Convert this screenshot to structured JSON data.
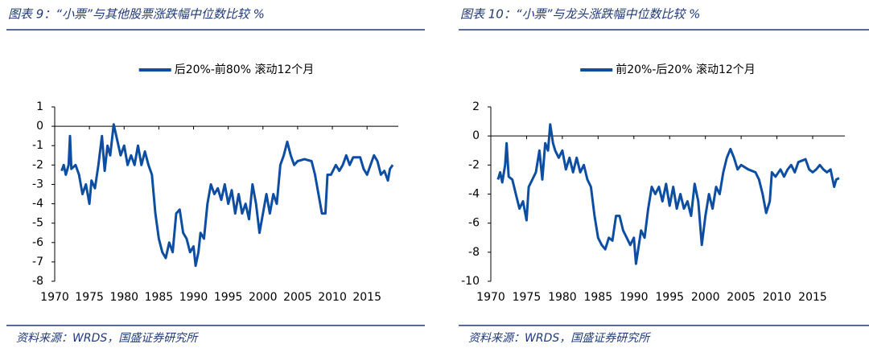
{
  "chart_data": [
    {
      "type": "line",
      "title": "图表 9：“小票”与其他股票涨跌幅中位数比较 %",
      "source": "资料来源：WRDS，国盛证券研究所",
      "xlim": [
        1970,
        2019.5
      ],
      "xticks": [
        1970,
        1975,
        1980,
        1985,
        1990,
        1995,
        2000,
        2005,
        2010,
        2015
      ],
      "ylim": [
        -8,
        1
      ],
      "yticks": [
        1,
        0,
        -1,
        -2,
        -3,
        -4,
        -5,
        -6,
        -7,
        -8
      ],
      "x": [
        1971,
        1971.3,
        1971.6,
        1972,
        1972.2,
        1972.4,
        1973,
        1973.5,
        1974,
        1974.5,
        1975,
        1975.3,
        1975.8,
        1976.3,
        1976.8,
        1977.2,
        1977.6,
        1978,
        1978.5,
        1979,
        1979.5,
        1980,
        1980.5,
        1981,
        1981.5,
        1982,
        1982.5,
        1983,
        1983.5,
        1984,
        1984.5,
        1985,
        1985.5,
        1986,
        1986.5,
        1987,
        1987.5,
        1988,
        1988.5,
        1989,
        1989.5,
        1990,
        1990.3,
        1990.7,
        1991,
        1991.5,
        1992,
        1992.5,
        1993,
        1993.5,
        1994,
        1994.5,
        1995,
        1995.5,
        1996,
        1996.5,
        1997,
        1997.5,
        1998,
        1998.5,
        1999,
        1999.5,
        2000,
        2000.5,
        2001,
        2001.5,
        2002,
        2002.5,
        2003,
        2003.5,
        2004,
        2004.5,
        2005,
        2006,
        2007,
        2007.5,
        2008,
        2008.5,
        2009,
        2009.3,
        2009.8,
        2010.5,
        2011,
        2011.5,
        2012,
        2012.5,
        2013,
        2014,
        2014.5,
        2015,
        2015.5,
        2016,
        2016.5,
        2017,
        2017.5,
        2018,
        2018.3,
        2018.7
      ],
      "series": [
        {
          "name": "后20%-前80% 滚动12个月",
          "color": "#0d4ea3",
          "values": [
            -2.3,
            -2.0,
            -2.5,
            -2.0,
            -0.5,
            -2.2,
            -2.0,
            -2.5,
            -3.5,
            -3.0,
            -4.0,
            -2.8,
            -3.2,
            -2.0,
            -0.5,
            -2.3,
            -1.0,
            -1.5,
            0.1,
            -0.7,
            -1.5,
            -1.0,
            -2.0,
            -1.5,
            -2.0,
            -1.0,
            -2.0,
            -1.3,
            -2.0,
            -2.5,
            -4.5,
            -5.8,
            -6.5,
            -6.8,
            -6.0,
            -6.5,
            -4.5,
            -4.3,
            -5.5,
            -5.8,
            -6.5,
            -6.2,
            -7.2,
            -6.5,
            -5.5,
            -5.8,
            -4.0,
            -3.0,
            -3.5,
            -3.2,
            -3.8,
            -3.0,
            -4.0,
            -3.3,
            -4.5,
            -3.5,
            -4.5,
            -4.0,
            -4.8,
            -3.0,
            -4.0,
            -5.5,
            -4.5,
            -3.5,
            -4.5,
            -3.5,
            -4.0,
            -2.0,
            -1.5,
            -0.8,
            -1.5,
            -2.0,
            -1.8,
            -1.7,
            -1.8,
            -2.5,
            -3.5,
            -4.5,
            -4.5,
            -2.5,
            -2.5,
            -2.0,
            -2.3,
            -2.0,
            -1.5,
            -2.0,
            -1.6,
            -1.6,
            -2.2,
            -2.5,
            -2.0,
            -1.5,
            -1.8,
            -2.5,
            -2.3,
            -2.8,
            -2.2,
            -2.0
          ]
        }
      ]
    },
    {
      "type": "line",
      "title": "图表 10：“小票”与龙头涨跌幅中位数比较 %",
      "source": "资料来源：WRDS，国盛证券研究所",
      "xlim": [
        1970,
        2019.5
      ],
      "xticks": [
        1970,
        1975,
        1980,
        1985,
        1990,
        1995,
        2000,
        2005,
        2010,
        2015
      ],
      "ylim": [
        -10,
        2
      ],
      "yticks": [
        2,
        0,
        -2,
        -4,
        -6,
        -8,
        -10
      ],
      "x": [
        1971,
        1971.3,
        1971.6,
        1972,
        1972.2,
        1972.5,
        1973,
        1973.5,
        1974,
        1974.5,
        1975,
        1975.3,
        1975.8,
        1976.3,
        1976.8,
        1977.2,
        1977.6,
        1978,
        1978.3,
        1978.7,
        1979,
        1979.5,
        1980,
        1980.5,
        1981,
        1981.5,
        1982,
        1982.5,
        1983,
        1983.5,
        1984,
        1984.5,
        1985,
        1985.5,
        1986,
        1986.5,
        1987,
        1987.5,
        1988,
        1988.5,
        1989,
        1989.5,
        1990,
        1990.3,
        1990.7,
        1991,
        1991.5,
        1992,
        1992.5,
        1993,
        1993.5,
        1994,
        1994.5,
        1995,
        1995.5,
        1996,
        1996.5,
        1997,
        1997.5,
        1998,
        1998.5,
        1999,
        1999.5,
        2000,
        2000.5,
        2001,
        2001.5,
        2002,
        2002.5,
        2003,
        2003.5,
        2004,
        2004.5,
        2005,
        2006,
        2007,
        2007.5,
        2008,
        2008.5,
        2009,
        2009.3,
        2009.8,
        2010.5,
        2011,
        2011.5,
        2012,
        2012.5,
        2013,
        2014,
        2014.5,
        2015,
        2015.5,
        2016,
        2016.5,
        2017,
        2017.5,
        2018,
        2018.3,
        2018.7
      ],
      "series": [
        {
          "name": "前20%-后20% 滚动12个月",
          "color": "#0d4ea3",
          "values": [
            -3.0,
            -2.5,
            -3.2,
            -2.0,
            -0.5,
            -2.8,
            -3.0,
            -4.0,
            -5.0,
            -4.5,
            -5.8,
            -3.5,
            -3.0,
            -2.5,
            -1.0,
            -3.0,
            -0.5,
            -1.0,
            0.8,
            -0.5,
            -1.0,
            -1.5,
            -1.0,
            -2.3,
            -1.5,
            -2.5,
            -1.5,
            -2.5,
            -2.0,
            -3.0,
            -3.5,
            -5.5,
            -7.0,
            -7.5,
            -7.8,
            -7.0,
            -7.2,
            -5.5,
            -5.5,
            -6.5,
            -7.0,
            -7.5,
            -7.0,
            -8.8,
            -7.5,
            -6.5,
            -7.0,
            -5.0,
            -3.5,
            -4.0,
            -3.5,
            -4.5,
            -3.3,
            -4.8,
            -3.5,
            -5.0,
            -4.0,
            -5.0,
            -4.5,
            -5.5,
            -3.3,
            -4.5,
            -7.5,
            -5.5,
            -4.0,
            -5.0,
            -3.5,
            -4.0,
            -2.5,
            -1.5,
            -0.9,
            -1.5,
            -2.3,
            -2.0,
            -2.3,
            -2.5,
            -3.0,
            -4.0,
            -5.3,
            -4.5,
            -2.5,
            -2.8,
            -2.3,
            -2.8,
            -2.3,
            -2.0,
            -2.5,
            -1.8,
            -1.6,
            -2.3,
            -2.5,
            -2.3,
            -2.0,
            -2.3,
            -2.5,
            -2.3,
            -3.5,
            -3.0,
            -2.9
          ]
        }
      ]
    }
  ]
}
